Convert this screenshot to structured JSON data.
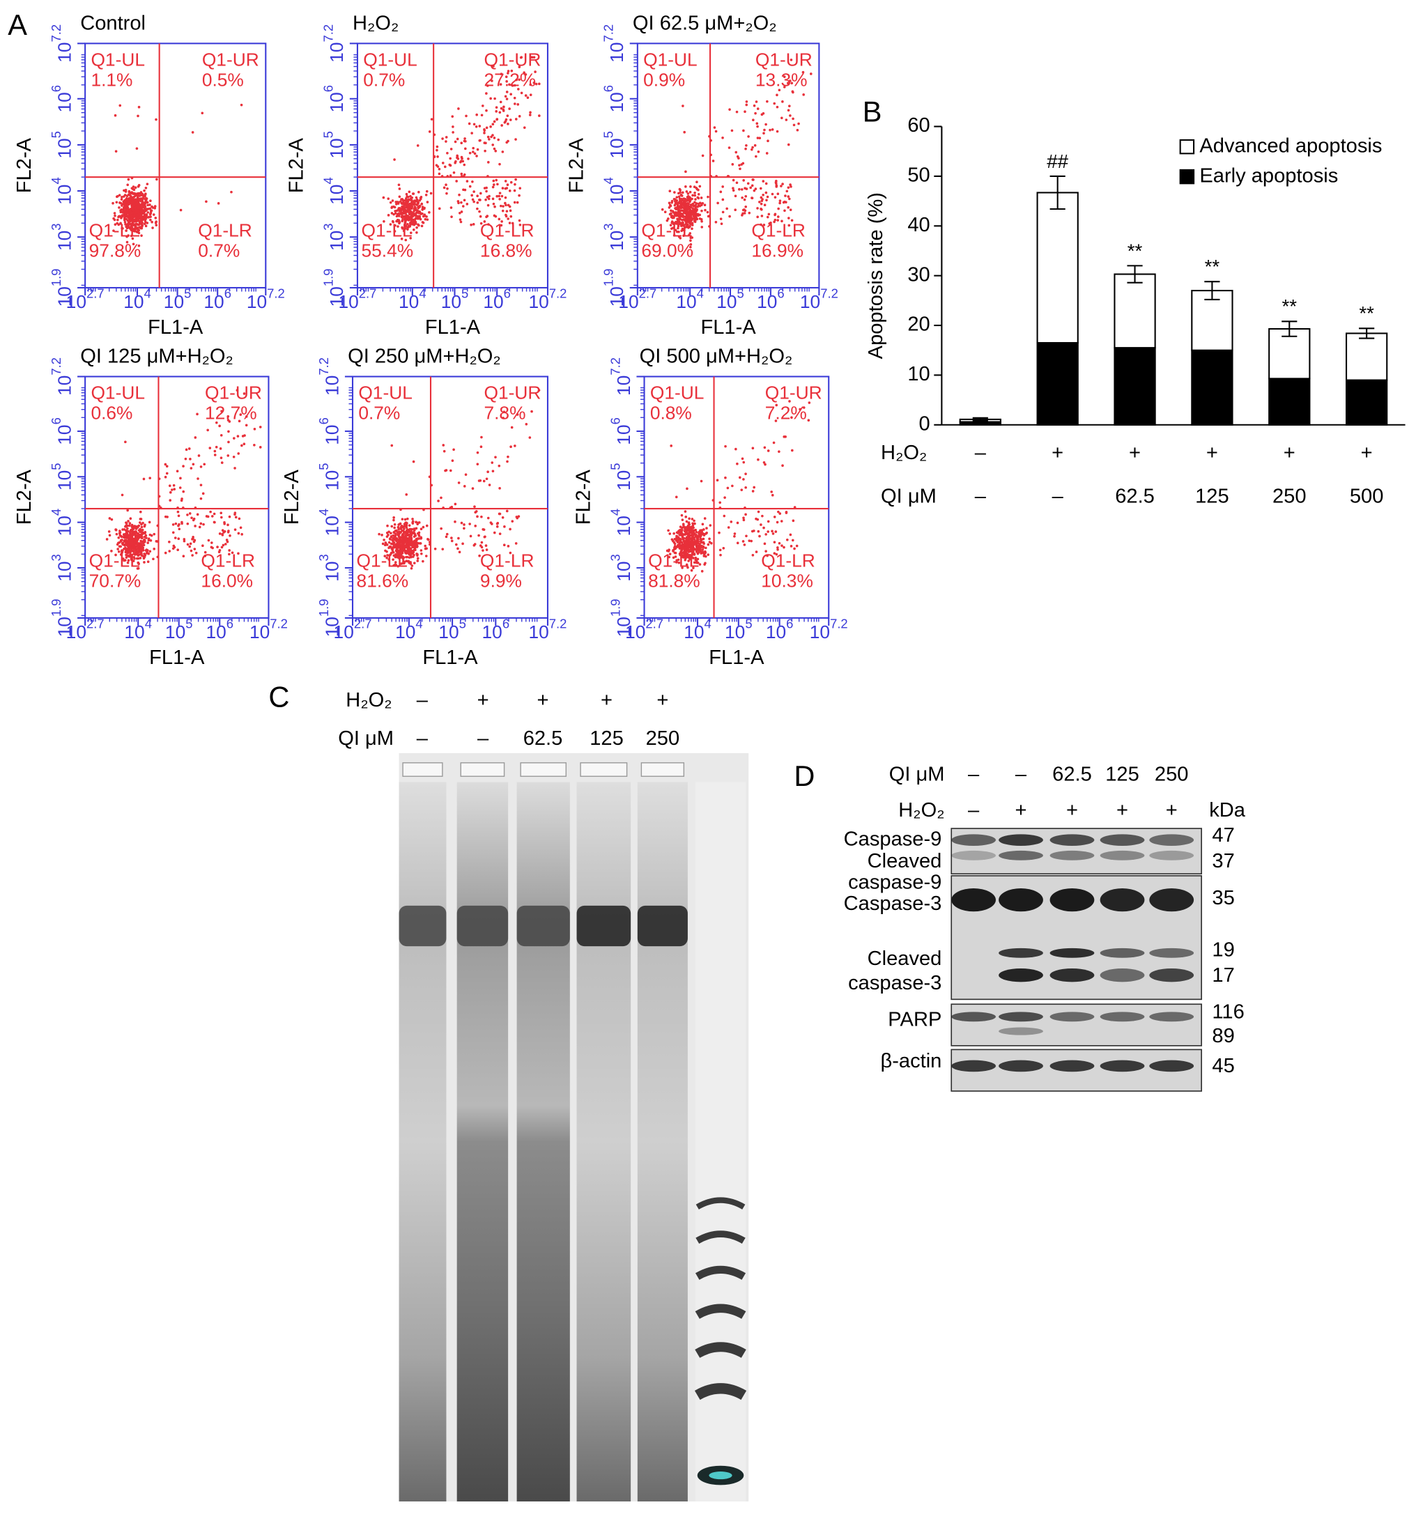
{
  "panel_labels": [
    "A",
    "B",
    "C",
    "D"
  ],
  "chart_data": [
    {
      "type": "scatter",
      "title": "Control",
      "xlabel": "FL1-A",
      "ylabel": "FL2-A",
      "color": "#e8303a",
      "axis_color": "#3a3ad8",
      "xlim": [
        2.7,
        7.2
      ],
      "ylim": [
        1.9,
        7.2
      ],
      "xticks": [
        {
          "value": 2.7,
          "label": "10^2.7"
        },
        {
          "value": 4,
          "label": "10^4"
        },
        {
          "value": 5,
          "label": "10^5"
        },
        {
          "value": 6,
          "label": "10^6"
        },
        {
          "value": 7.2,
          "label": "10^7.2"
        }
      ],
      "yticks": [
        {
          "value": 1.9,
          "label": "10^1.9"
        },
        {
          "value": 3,
          "label": "10^3"
        },
        {
          "value": 4,
          "label": "10^4"
        },
        {
          "value": 5,
          "label": "10^5"
        },
        {
          "value": 6,
          "label": "10^6"
        },
        {
          "value": 7.2,
          "label": "10^7.2"
        }
      ],
      "gate_x": 4.55,
      "gate_y": 4.3,
      "quadrants": {
        "names": [
          "Q1-UL",
          "Q1-UR",
          "Q1-LL",
          "Q1-LR"
        ],
        "values": [
          1.1,
          0.5,
          97.8,
          0.7
        ],
        "value_labels": [
          "1.1%",
          "0.5%",
          "97.8%",
          "0.7%"
        ]
      }
    },
    {
      "type": "scatter",
      "title": "H₂O₂",
      "xlabel": "FL1-A",
      "ylabel": "FL2-A",
      "color": "#e8303a",
      "axis_color": "#3a3ad8",
      "xlim": [
        2.7,
        7.2
      ],
      "ylim": [
        1.9,
        7.2
      ],
      "xticks": [
        {
          "value": 2.7,
          "label": "10^2.7"
        },
        {
          "value": 4,
          "label": "10^4"
        },
        {
          "value": 5,
          "label": "10^5"
        },
        {
          "value": 6,
          "label": "10^6"
        },
        {
          "value": 7.2,
          "label": "10^7.2"
        }
      ],
      "yticks": [
        {
          "value": 1.9,
          "label": "10^1.9"
        },
        {
          "value": 3,
          "label": "10^3"
        },
        {
          "value": 4,
          "label": "10^4"
        },
        {
          "value": 5,
          "label": "10^5"
        },
        {
          "value": 6,
          "label": "10^6"
        },
        {
          "value": 7.2,
          "label": "10^7.2"
        }
      ],
      "gate_x": 4.5,
      "gate_y": 4.3,
      "quadrants": {
        "names": [
          "Q1-UL",
          "Q1-UR",
          "Q1-LL",
          "Q1-LR"
        ],
        "values": [
          0.7,
          27.2,
          55.4,
          16.8
        ],
        "value_labels": [
          "0.7%",
          "27.2%",
          "55.4%",
          "16.8%"
        ]
      }
    },
    {
      "type": "scatter",
      "title": "QI 62.5 μM+₂O₂",
      "xlabel": "FL1-A",
      "ylabel": "FL2-A",
      "color": "#e8303a",
      "axis_color": "#3a3ad8",
      "xlim": [
        2.7,
        7.2
      ],
      "ylim": [
        1.9,
        7.2
      ],
      "xticks": [
        {
          "value": 2.7,
          "label": "10^2.7"
        },
        {
          "value": 4,
          "label": "10^4"
        },
        {
          "value": 5,
          "label": "10^5"
        },
        {
          "value": 6,
          "label": "10^6"
        },
        {
          "value": 7.2,
          "label": "10^7.2"
        }
      ],
      "yticks": [
        {
          "value": 1.9,
          "label": "10^1.9"
        },
        {
          "value": 3,
          "label": "10^3"
        },
        {
          "value": 4,
          "label": "10^4"
        },
        {
          "value": 5,
          "label": "10^5"
        },
        {
          "value": 6,
          "label": "10^6"
        },
        {
          "value": 7.2,
          "label": "10^7.2"
        }
      ],
      "gate_x": 4.5,
      "gate_y": 4.3,
      "quadrants": {
        "names": [
          "Q1-UL",
          "Q1-UR",
          "Q1-LL",
          "Q1-LR"
        ],
        "values": [
          0.9,
          13.3,
          69.0,
          16.9
        ],
        "value_labels": [
          "0.9%",
          "13.3%",
          "69.0%",
          "16.9%"
        ]
      }
    },
    {
      "type": "scatter",
      "title": "QI 125 μM+H₂O₂",
      "xlabel": "FL1-A",
      "ylabel": "FL2-A",
      "color": "#e8303a",
      "axis_color": "#3a3ad8",
      "xlim": [
        2.7,
        7.2
      ],
      "ylim": [
        1.9,
        7.2
      ],
      "xticks": [
        {
          "value": 2.7,
          "label": "10^2.7"
        },
        {
          "value": 4,
          "label": "10^4"
        },
        {
          "value": 5,
          "label": "10^5"
        },
        {
          "value": 6,
          "label": "10^6"
        },
        {
          "value": 7.2,
          "label": "10^7.2"
        }
      ],
      "yticks": [
        {
          "value": 1.9,
          "label": "10^1.9"
        },
        {
          "value": 3,
          "label": "10^3"
        },
        {
          "value": 4,
          "label": "10^4"
        },
        {
          "value": 5,
          "label": "10^5"
        },
        {
          "value": 6,
          "label": "10^6"
        },
        {
          "value": 7.2,
          "label": "10^7.2"
        }
      ],
      "gate_x": 4.5,
      "gate_y": 4.3,
      "quadrants": {
        "names": [
          "Q1-UL",
          "Q1-UR",
          "Q1-LL",
          "Q1-LR"
        ],
        "values": [
          0.6,
          12.7,
          70.7,
          16.0
        ],
        "value_labels": [
          "0.6%",
          "12.7%",
          "70.7%",
          "16.0%"
        ]
      }
    },
    {
      "type": "scatter",
      "title": "QI 250 μM+H₂O₂",
      "xlabel": "FL1-A",
      "ylabel": "FL2-A",
      "color": "#e8303a",
      "axis_color": "#3a3ad8",
      "xlim": [
        2.7,
        7.2
      ],
      "ylim": [
        1.9,
        7.2
      ],
      "xticks": [
        {
          "value": 2.7,
          "label": "10^2.7"
        },
        {
          "value": 4,
          "label": "10^4"
        },
        {
          "value": 5,
          "label": "10^5"
        },
        {
          "value": 6,
          "label": "10^6"
        },
        {
          "value": 7.2,
          "label": "10^7.2"
        }
      ],
      "yticks": [
        {
          "value": 1.9,
          "label": "10^1.9"
        },
        {
          "value": 3,
          "label": "10^3"
        },
        {
          "value": 4,
          "label": "10^4"
        },
        {
          "value": 5,
          "label": "10^5"
        },
        {
          "value": 6,
          "label": "10^6"
        },
        {
          "value": 7.2,
          "label": "10^7.2"
        }
      ],
      "gate_x": 4.5,
      "gate_y": 4.3,
      "quadrants": {
        "names": [
          "Q1-UL",
          "Q1-UR",
          "Q1-LL",
          "Q1-LR"
        ],
        "values": [
          0.7,
          7.8,
          81.6,
          9.9
        ],
        "value_labels": [
          "0.7%",
          "7.8%",
          "81.6%",
          "9.9%"
        ]
      }
    },
    {
      "type": "scatter",
      "title": "QI 500 μM+H₂O₂",
      "xlabel": "FL1-A",
      "ylabel": "FL2-A",
      "color": "#e8303a",
      "axis_color": "#3a3ad8",
      "xlim": [
        2.7,
        7.2
      ],
      "ylim": [
        1.9,
        7.2
      ],
      "xticks": [
        {
          "value": 2.7,
          "label": "10^2.7"
        },
        {
          "value": 4,
          "label": "10^4"
        },
        {
          "value": 5,
          "label": "10^5"
        },
        {
          "value": 6,
          "label": "10^6"
        },
        {
          "value": 7.2,
          "label": "10^7.2"
        }
      ],
      "yticks": [
        {
          "value": 1.9,
          "label": "10^1.9"
        },
        {
          "value": 3,
          "label": "10^3"
        },
        {
          "value": 4,
          "label": "10^4"
        },
        {
          "value": 5,
          "label": "10^5"
        },
        {
          "value": 6,
          "label": "10^6"
        },
        {
          "value": 7.2,
          "label": "10^7.2"
        }
      ],
      "gate_x": 4.4,
      "gate_y": 4.3,
      "quadrants": {
        "names": [
          "Q1-UL",
          "Q1-UR",
          "Q1-LL",
          "Q1-LR"
        ],
        "values": [
          0.8,
          7.2,
          81.8,
          10.3
        ],
        "value_labels": [
          "0.8%",
          "7.2%",
          "81.8%",
          "10.3%"
        ]
      }
    },
    {
      "type": "bar",
      "stacked": true,
      "ylabel": "Apoptosis rate (%)",
      "ylim": [
        0,
        60
      ],
      "yticks": [
        0,
        10,
        20,
        30,
        40,
        50,
        60
      ],
      "legend": "upper right",
      "category_rows": [
        {
          "name": "H₂O₂",
          "labels": [
            "–",
            "+",
            "+",
            "+",
            "+",
            "+"
          ]
        },
        {
          "name": "QI μM",
          "labels": [
            "–",
            "–",
            "62.5",
            "125",
            "250",
            "500"
          ]
        }
      ],
      "series": [
        {
          "name": "Early apoptosis",
          "color": "#000000",
          "values": [
            0.6,
            16.5,
            15.5,
            15.0,
            9.3,
            9.0
          ]
        },
        {
          "name": "Advanced apoptosis",
          "color": "#ffffff",
          "values": [
            0.5,
            30.2,
            14.8,
            12.0,
            10.0,
            9.4
          ],
          "errors": [
            0.3,
            3.3,
            1.7,
            1.8,
            1.5,
            1.0
          ]
        }
      ],
      "annotations": [
        null,
        "##",
        "**",
        "**",
        "**",
        "**"
      ]
    }
  ],
  "gel": {
    "rows": [
      {
        "name": "H₂O₂",
        "labels": [
          "–",
          "+",
          "+",
          "+",
          "+"
        ]
      },
      {
        "name": "QI μM",
        "labels": [
          "–",
          "–",
          "62.5",
          "125",
          "250"
        ]
      }
    ]
  },
  "western_blot": {
    "header_rows": [
      {
        "name": "QI μM",
        "labels": [
          "–",
          "–",
          "62.5",
          "125",
          "250"
        ]
      },
      {
        "name": "H₂O₂",
        "labels": [
          "–",
          "+",
          "+",
          "+",
          "+"
        ]
      }
    ],
    "unit": "kDa",
    "proteins": [
      [
        "Caspase-9"
      ],
      [
        "Cleaved",
        "caspase-9"
      ],
      [
        "Caspase-3"
      ],
      [
        "Cleaved",
        "caspase-3"
      ],
      [
        "PARP"
      ],
      [
        "β-actin"
      ]
    ],
    "markers": [
      47,
      37,
      35,
      19,
      17,
      116,
      89,
      45
    ]
  }
}
